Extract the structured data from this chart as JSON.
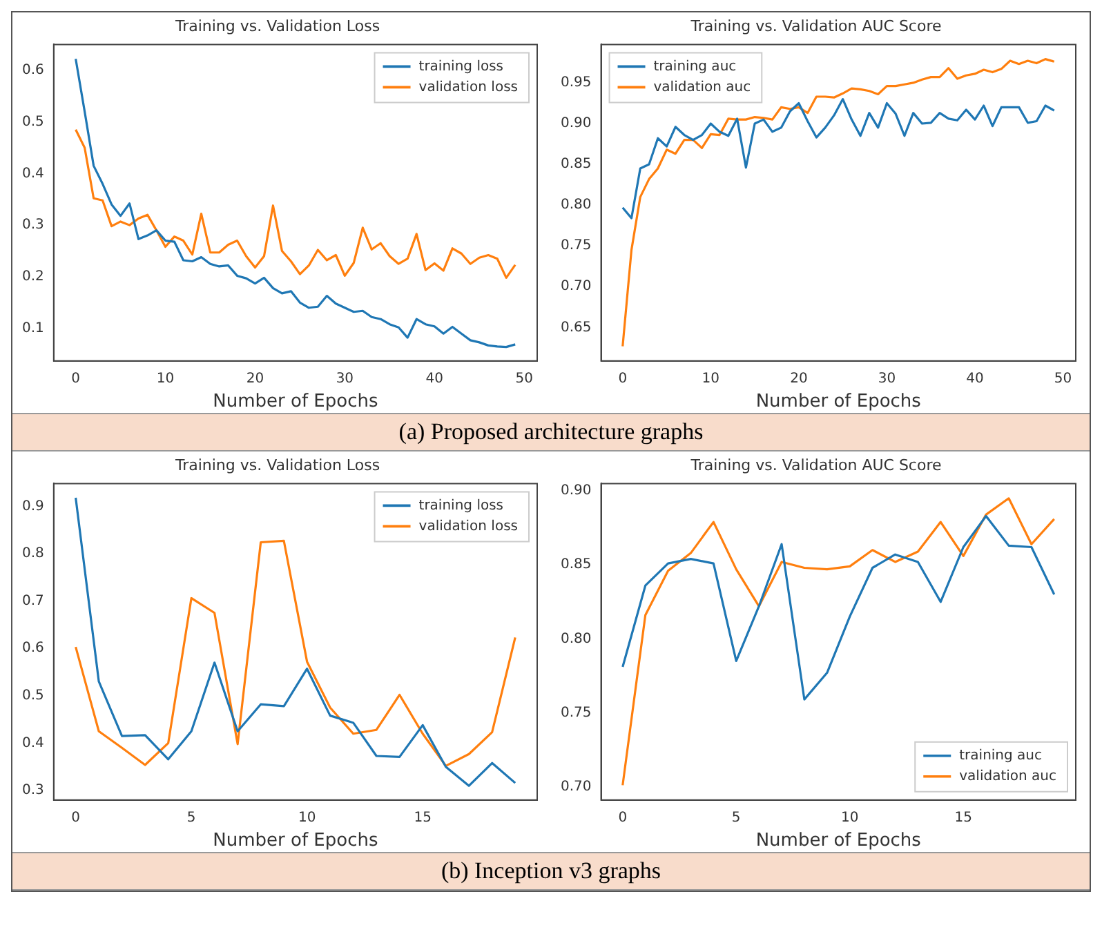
{
  "chart_data": [
    {
      "type": "line",
      "title": "Training vs. Validation Loss",
      "xlabel": "Number of Epochs",
      "annotations": [
        "(a) Proposed architecture graphs"
      ],
      "legend": "top right",
      "grid": false,
      "x": [
        0,
        1,
        2,
        3,
        4,
        5,
        6,
        7,
        8,
        9,
        10,
        11,
        12,
        13,
        14,
        15,
        16,
        17,
        18,
        19,
        20,
        21,
        22,
        23,
        24,
        25,
        26,
        27,
        28,
        29,
        30,
        31,
        32,
        33,
        34,
        35,
        36,
        37,
        38,
        39,
        40,
        41,
        42,
        43,
        44,
        45,
        46,
        47,
        48,
        49
      ],
      "xlim": [
        -2.45,
        51.45
      ],
      "xticks": [
        0,
        10,
        20,
        30,
        40,
        50
      ],
      "ylim": [
        0.037,
        0.65
      ],
      "yticks": [
        0.1,
        0.2,
        0.3,
        0.4,
        0.5,
        0.6
      ],
      "series": [
        {
          "name": "training loss",
          "color": "#1f77b4",
          "values": [
            0.622,
            0.52,
            0.415,
            0.38,
            0.34,
            0.318,
            0.342,
            0.273,
            0.28,
            0.29,
            0.27,
            0.268,
            0.232,
            0.23,
            0.238,
            0.225,
            0.22,
            0.222,
            0.202,
            0.197,
            0.187,
            0.198,
            0.178,
            0.168,
            0.172,
            0.15,
            0.14,
            0.142,
            0.163,
            0.148,
            0.14,
            0.132,
            0.134,
            0.122,
            0.118,
            0.108,
            0.102,
            0.082,
            0.118,
            0.108,
            0.104,
            0.09,
            0.103,
            0.09,
            0.077,
            0.073,
            0.067,
            0.065,
            0.064,
            0.069
          ]
        },
        {
          "name": "validation loss",
          "color": "#ff7f0e",
          "values": [
            0.485,
            0.45,
            0.352,
            0.348,
            0.298,
            0.307,
            0.3,
            0.313,
            0.32,
            0.29,
            0.258,
            0.278,
            0.27,
            0.243,
            0.322,
            0.247,
            0.247,
            0.262,
            0.27,
            0.24,
            0.218,
            0.24,
            0.338,
            0.25,
            0.23,
            0.205,
            0.222,
            0.252,
            0.232,
            0.242,
            0.202,
            0.227,
            0.295,
            0.253,
            0.265,
            0.24,
            0.225,
            0.235,
            0.283,
            0.213,
            0.226,
            0.212,
            0.255,
            0.245,
            0.225,
            0.237,
            0.242,
            0.235,
            0.198,
            0.223
          ]
        }
      ]
    },
    {
      "type": "line",
      "title": "Training vs. Validation AUC Score",
      "xlabel": "Number of Epochs",
      "legend": "top left",
      "grid": false,
      "x": [
        0,
        1,
        2,
        3,
        4,
        5,
        6,
        7,
        8,
        9,
        10,
        11,
        12,
        13,
        14,
        15,
        16,
        17,
        18,
        19,
        20,
        21,
        22,
        23,
        24,
        25,
        26,
        27,
        28,
        29,
        30,
        31,
        32,
        33,
        34,
        35,
        36,
        37,
        38,
        39,
        40,
        41,
        42,
        43,
        44,
        45,
        46,
        47,
        48,
        49
      ],
      "xlim": [
        -2.45,
        51.45
      ],
      "xticks": [
        0,
        10,
        20,
        30,
        40,
        50
      ],
      "ylim": [
        0.609,
        0.997
      ],
      "yticks": [
        0.65,
        {
          "value": 0.7,
          "label": "0.70"
        },
        0.75,
        {
          "value": 0.8,
          "label": "0.80"
        },
        0.85,
        {
          "value": 0.9,
          "label": "0.90"
        },
        0.95
      ],
      "series": [
        {
          "name": "training auc",
          "color": "#1f77b4",
          "values": [
            0.797,
            0.784,
            0.845,
            0.85,
            0.882,
            0.872,
            0.896,
            0.886,
            0.88,
            0.886,
            0.9,
            0.89,
            0.885,
            0.906,
            0.846,
            0.9,
            0.905,
            0.89,
            0.895,
            0.915,
            0.925,
            0.903,
            0.883,
            0.895,
            0.91,
            0.93,
            0.905,
            0.885,
            0.913,
            0.895,
            0.925,
            0.912,
            0.885,
            0.913,
            0.9,
            0.901,
            0.913,
            0.906,
            0.904,
            0.917,
            0.905,
            0.922,
            0.897,
            0.92,
            0.92,
            0.92,
            0.901,
            0.903,
            0.922,
            0.916
          ]
        },
        {
          "name": "validation auc",
          "color": "#ff7f0e",
          "values": [
            0.627,
            0.745,
            0.81,
            0.832,
            0.845,
            0.868,
            0.863,
            0.88,
            0.88,
            0.87,
            0.887,
            0.886,
            0.906,
            0.905,
            0.905,
            0.908,
            0.907,
            0.905,
            0.92,
            0.918,
            0.92,
            0.913,
            0.933,
            0.933,
            0.932,
            0.937,
            0.943,
            0.942,
            0.94,
            0.936,
            0.946,
            0.946,
            0.948,
            0.95,
            0.954,
            0.957,
            0.957,
            0.968,
            0.955,
            0.959,
            0.961,
            0.966,
            0.963,
            0.967,
            0.977,
            0.973,
            0.977,
            0.974,
            0.979,
            0.976
          ]
        }
      ]
    },
    {
      "type": "line",
      "title": "Training vs. Validation Loss",
      "xlabel": "Number of Epochs",
      "annotations": [
        "(b) Inception v3 graphs"
      ],
      "legend": "top right",
      "grid": false,
      "x": [
        0,
        1,
        2,
        3,
        4,
        5,
        6,
        7,
        8,
        9,
        10,
        11,
        12,
        13,
        14,
        15,
        16,
        17,
        18,
        19
      ],
      "xlim": [
        -0.95,
        19.95
      ],
      "xticks": [
        0,
        5,
        10,
        15
      ],
      "ylim": [
        0.28,
        0.948
      ],
      "yticks": [
        0.3,
        0.4,
        0.5,
        0.6,
        0.7,
        0.8,
        0.9
      ],
      "series": [
        {
          "name": "training loss",
          "color": "#1f77b4",
          "values": [
            0.918,
            0.53,
            0.415,
            0.417,
            0.366,
            0.425,
            0.57,
            0.425,
            0.482,
            0.478,
            0.557,
            0.458,
            0.443,
            0.373,
            0.371,
            0.438,
            0.35,
            0.31,
            0.358,
            0.316
          ]
        },
        {
          "name": "validation loss",
          "color": "#ff7f0e",
          "values": [
            0.603,
            0.425,
            0.39,
            0.354,
            0.4,
            0.706,
            0.675,
            0.398,
            0.824,
            0.827,
            0.572,
            0.475,
            0.42,
            0.428,
            0.502,
            0.42,
            0.352,
            0.377,
            0.423,
            0.623
          ]
        }
      ]
    },
    {
      "type": "line",
      "title": "Training vs. Validation AUC Score",
      "xlabel": "Number of Epochs",
      "legend": "bottom right",
      "grid": false,
      "x": [
        0,
        1,
        2,
        3,
        4,
        5,
        6,
        7,
        8,
        9,
        10,
        11,
        12,
        13,
        14,
        15,
        16,
        17,
        18,
        19
      ],
      "xlim": [
        -0.95,
        19.95
      ],
      "xticks": [
        0,
        5,
        10,
        15
      ],
      "ylim": [
        0.691,
        0.905
      ],
      "yticks": [
        {
          "value": 0.7,
          "label": "0.70"
        },
        0.75,
        {
          "value": 0.8,
          "label": "0.80"
        },
        0.85,
        {
          "value": 0.9,
          "label": "0.90"
        }
      ],
      "series": [
        {
          "name": "training auc",
          "color": "#1f77b4",
          "values": [
            0.781,
            0.836,
            0.851,
            0.854,
            0.851,
            0.785,
            0.822,
            0.864,
            0.759,
            0.777,
            0.815,
            0.848,
            0.857,
            0.852,
            0.825,
            0.862,
            0.883,
            0.863,
            0.862,
            0.83
          ]
        },
        {
          "name": "validation auc",
          "color": "#ff7f0e",
          "values": [
            0.701,
            0.816,
            0.846,
            0.858,
            0.879,
            0.847,
            0.822,
            0.852,
            0.848,
            0.847,
            0.849,
            0.86,
            0.852,
            0.859,
            0.879,
            0.856,
            0.884,
            0.895,
            0.864,
            0.881
          ]
        }
      ]
    }
  ]
}
